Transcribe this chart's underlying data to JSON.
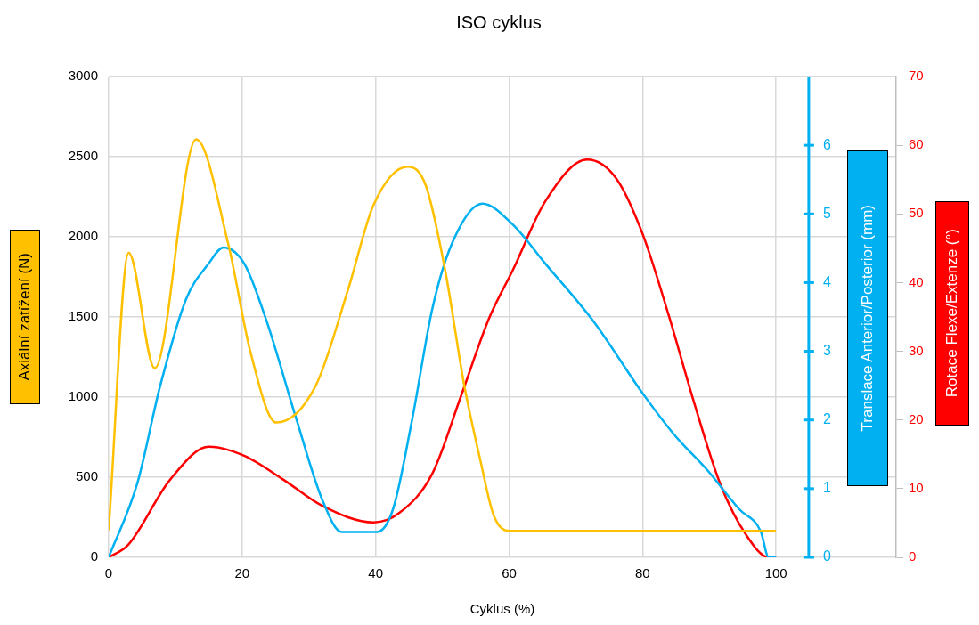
{
  "chart_data": {
    "type": "line",
    "title": "ISO cyklus",
    "xlabel": "Cyklus (%)",
    "ylabel": "Axiální zatížení (N)",
    "y2label": "Translace Anterior/Posterior  (mm)",
    "y3label": "Rotace Flexe/Extenze (°)",
    "xlim": [
      0,
      118
    ],
    "xticks": [
      0,
      20,
      40,
      60,
      80,
      100
    ],
    "ylim": [
      0,
      3000
    ],
    "yticks": [
      0,
      500,
      1000,
      1500,
      2000,
      2500,
      3000
    ],
    "y2lim": [
      0,
      7
    ],
    "y2ticks": [
      0,
      1,
      2,
      3,
      4,
      5,
      6
    ],
    "y3lim": [
      0,
      70
    ],
    "y3ticks": [
      0,
      10,
      20,
      30,
      40,
      50,
      60,
      70
    ],
    "grid": true,
    "legend": false,
    "marker": "none",
    "line_style": "solid",
    "series": [
      {
        "color": "#ffc000",
        "axis": "y",
        "x": [
          0,
          3.0,
          6.9,
          13.1,
          17.9,
          21.3,
          25.1,
          31,
          35.9,
          39.7,
          44.8,
          47.5,
          50.4,
          53.3,
          55.7,
          57.7,
          60.1,
          80,
          100
        ],
        "values": [
          170,
          1900,
          1180,
          2608,
          1958,
          1272,
          841,
          1069,
          1675,
          2200,
          2438,
          2322,
          1796,
          1069,
          604,
          261,
          165,
          165,
          165
        ]
      },
      {
        "color": "#00b0f0",
        "axis": "y2",
        "x": [
          0,
          4.3,
          7.7,
          11.6,
          15,
          17.2,
          20.3,
          23.7,
          28.1,
          32,
          34.9,
          40.2,
          42.6,
          45.5,
          48.5,
          51.4,
          56,
          60.6,
          65.4,
          72.7,
          80,
          84.8,
          89.7,
          94.5,
          97.7,
          98.9,
          100
        ],
        "values": [
          0,
          1.08,
          2.49,
          3.76,
          4.28,
          4.51,
          4.28,
          3.43,
          2.02,
          0.84,
          0.37,
          0.37,
          0.7,
          2.02,
          3.62,
          4.56,
          5.15,
          4.84,
          4.28,
          3.43,
          2.39,
          1.78,
          1.27,
          0.7,
          0.38,
          0,
          0
        ]
      },
      {
        "color": "#ff0000",
        "axis": "y3",
        "x": [
          0,
          2.9,
          9.2,
          15,
          20.3,
          26.2,
          32,
          39.7,
          43.6,
          48.5,
          52.8,
          57,
          60.6,
          65.4,
          71.7,
          76.1,
          80,
          83.9,
          87.7,
          91.6,
          95.5,
          98.9,
          100
        ],
        "values": [
          0,
          1.8,
          11.3,
          16.1,
          14.8,
          11.3,
          7.5,
          5.1,
          6.5,
          12.2,
          23.5,
          34.8,
          41.9,
          51.8,
          57.9,
          55.1,
          47.1,
          35.3,
          22.6,
          10.8,
          3.3,
          0,
          0
        ]
      }
    ]
  }
}
